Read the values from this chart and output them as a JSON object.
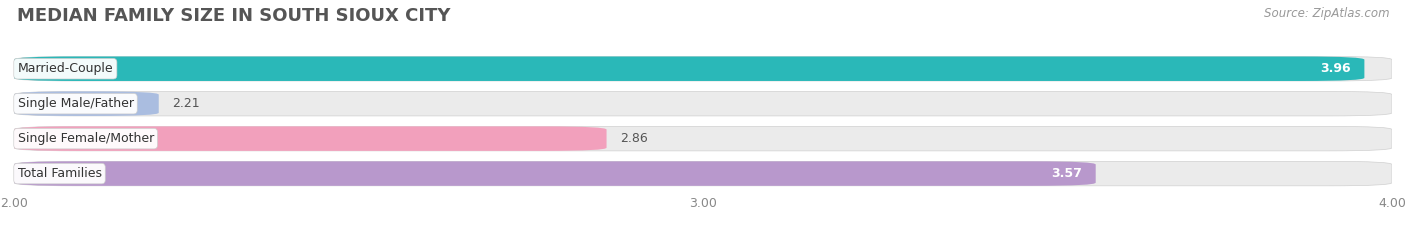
{
  "title": "MEDIAN FAMILY SIZE IN SOUTH SIOUX CITY",
  "source": "Source: ZipAtlas.com",
  "categories": [
    "Married-Couple",
    "Single Male/Father",
    "Single Female/Mother",
    "Total Families"
  ],
  "values": [
    3.96,
    2.21,
    2.86,
    3.57
  ],
  "bar_colors": [
    "#2ab8b8",
    "#aabde0",
    "#f2a0bc",
    "#b898cc"
  ],
  "value_colors": [
    "white",
    "black",
    "black",
    "white"
  ],
  "xlim_min": 2.0,
  "xlim_max": 4.0,
  "xticks": [
    2.0,
    3.0,
    4.0
  ],
  "xtick_labels": [
    "2.00",
    "3.00",
    "4.00"
  ],
  "label_fontsize": 9,
  "value_fontsize": 9,
  "title_fontsize": 13,
  "source_fontsize": 8.5,
  "bg_color": "#ffffff",
  "bar_bg_color": "#ebebeb",
  "bar_height": 0.7,
  "bar_gap": 0.15
}
